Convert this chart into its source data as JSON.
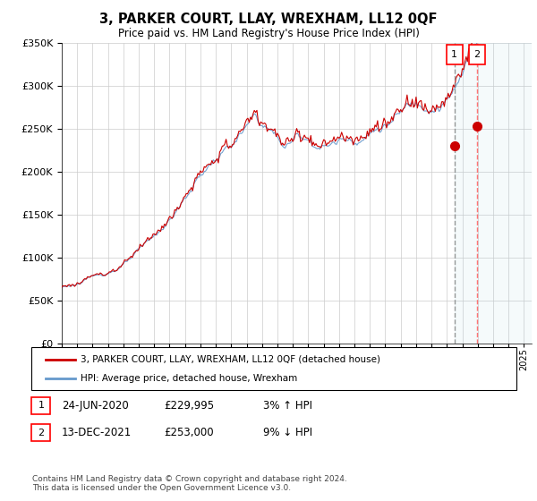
{
  "title": "3, PARKER COURT, LLAY, WREXHAM, LL12 0QF",
  "subtitle": "Price paid vs. HM Land Registry's House Price Index (HPI)",
  "legend_line1": "3, PARKER COURT, LLAY, WREXHAM, LL12 0QF (detached house)",
  "legend_line2": "HPI: Average price, detached house, Wrexham",
  "footnote": "Contains HM Land Registry data © Crown copyright and database right 2024.\nThis data is licensed under the Open Government Licence v3.0.",
  "transaction1": {
    "label": "1",
    "date": "24-JUN-2020",
    "price": "£229,995",
    "hpi": "3% ↑ HPI",
    "year": 2020.48,
    "price_val": 229995
  },
  "transaction2": {
    "label": "2",
    "date": "13-DEC-2021",
    "price": "£253,000",
    "hpi": "9% ↓ HPI",
    "year": 2021.95,
    "price_val": 253000
  },
  "price_color": "#cc0000",
  "hpi_color": "#6699cc",
  "background_color": "#ffffff",
  "grid_color": "#cccccc",
  "ylim": [
    0,
    350000
  ],
  "xlim_start": 1995,
  "xlim_end": 2025.5
}
